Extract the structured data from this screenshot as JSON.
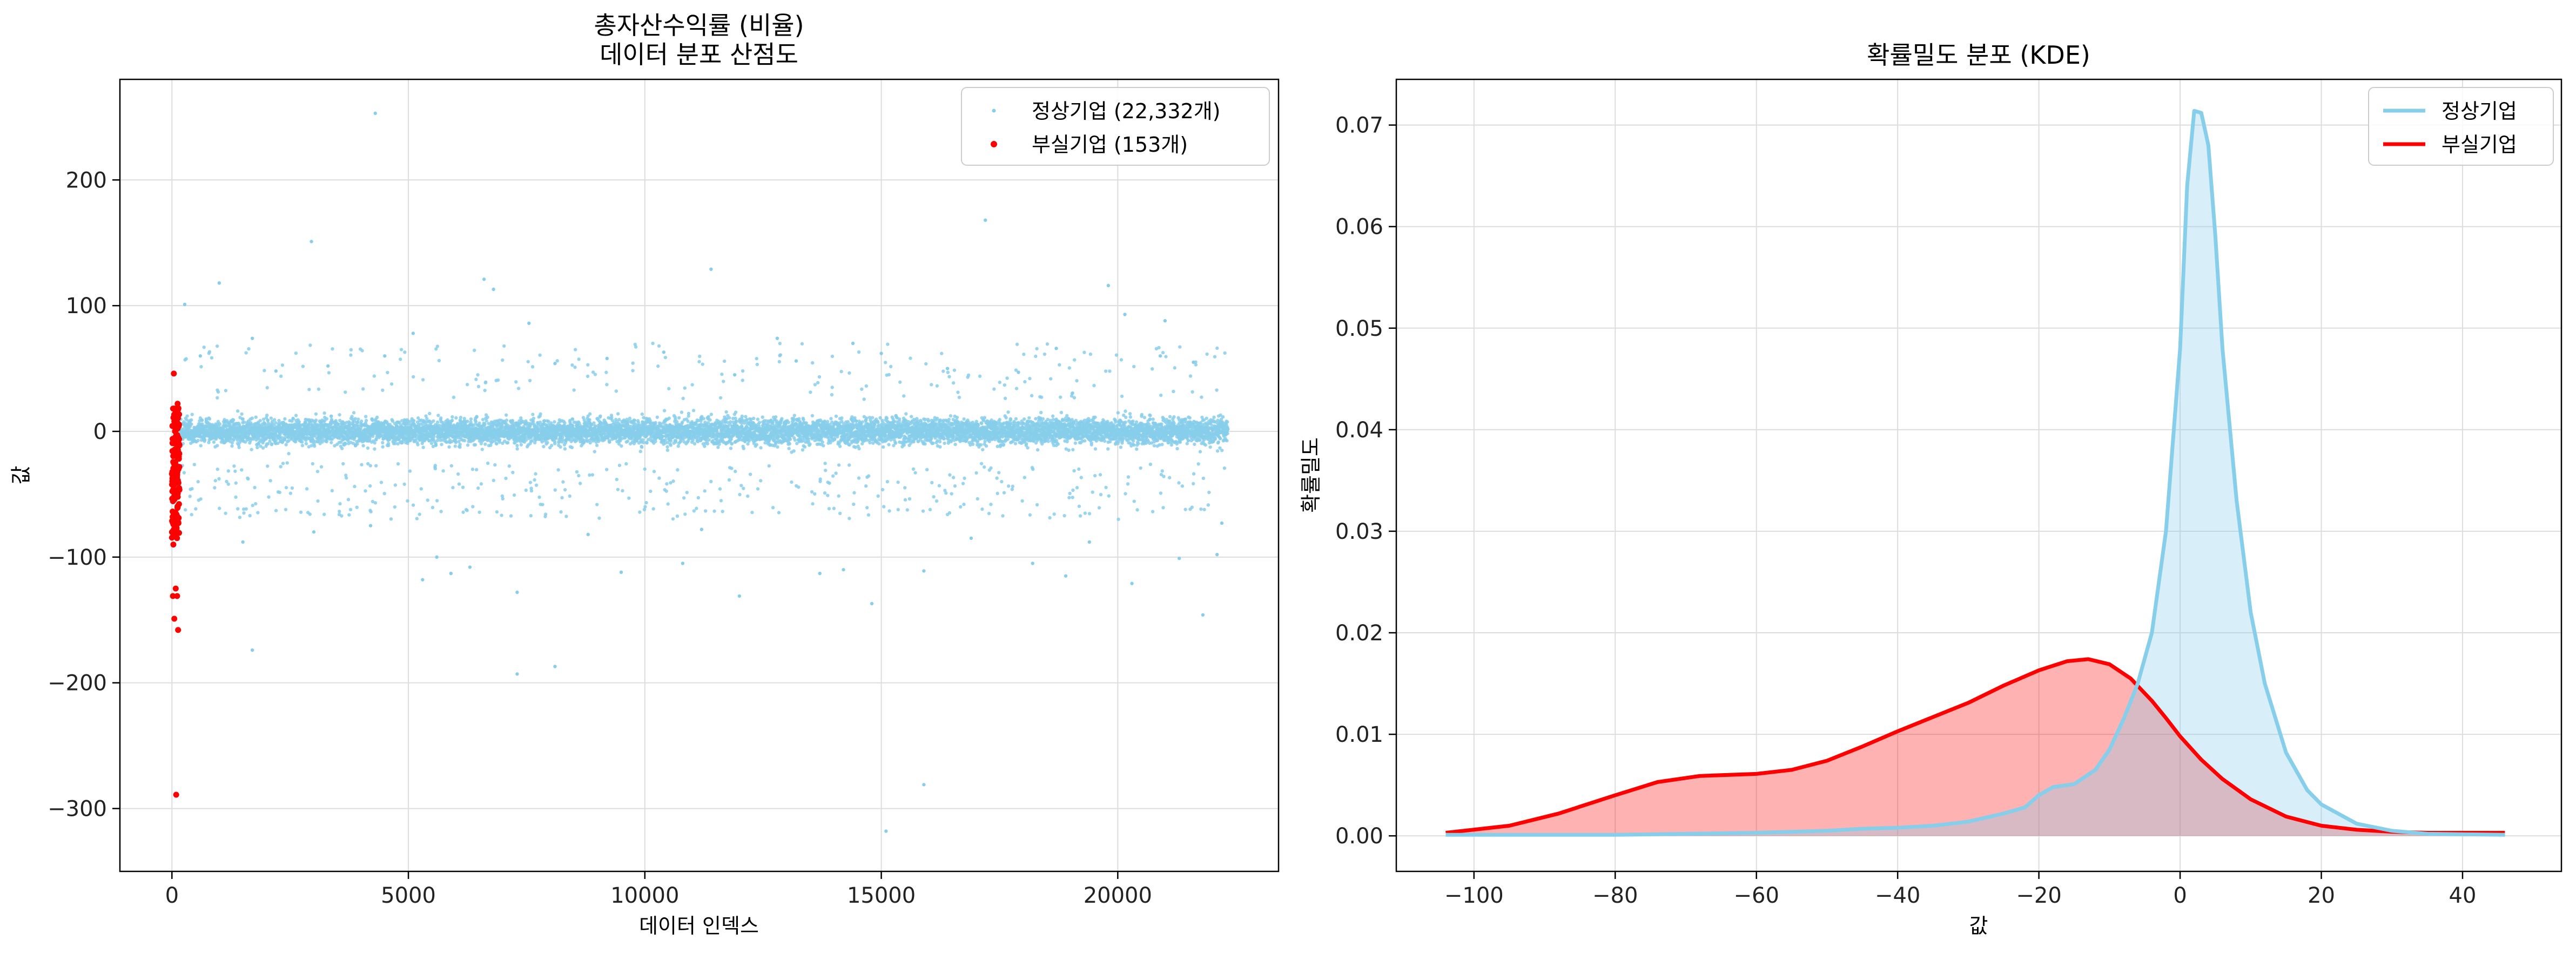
{
  "chart_data": [
    {
      "type": "scatter",
      "title": [
        "총자산수익률 (비율)",
        "데이터 분포 산점도"
      ],
      "xlabel": "데이터 인덱스",
      "ylabel": "값",
      "xlim": [
        -1100,
        23400
      ],
      "ylim": [
        -350,
        280
      ],
      "xticks": [
        0,
        5000,
        10000,
        15000,
        20000
      ],
      "yticks": [
        -300,
        -200,
        -100,
        0,
        100,
        200
      ],
      "grid": true,
      "legend_position": "top-right",
      "colors": {
        "normal": "#87ceeb",
        "bankrupt": "#ff0000"
      },
      "series": [
        {
          "name": "정상기업 (22,332개)",
          "count": 22332,
          "x_range": [
            150,
            22330
          ],
          "typical_y_range": [
            -25,
            25
          ],
          "outliers": [
            {
              "x": 4300,
              "y": 253
            },
            {
              "x": 17200,
              "y": 168
            },
            {
              "x": 2950,
              "y": 151
            },
            {
              "x": 11400,
              "y": 129
            },
            {
              "x": 6600,
              "y": 121
            },
            {
              "x": 19800,
              "y": 116
            },
            {
              "x": 1000,
              "y": 118
            },
            {
              "x": 6800,
              "y": 113
            },
            {
              "x": 270,
              "y": 101
            },
            {
              "x": 20150,
              "y": 93
            },
            {
              "x": 7550,
              "y": 86
            },
            {
              "x": 21000,
              "y": 88
            },
            {
              "x": 5100,
              "y": 78
            },
            {
              "x": 1700,
              "y": 74
            },
            {
              "x": 12800,
              "y": 74
            },
            {
              "x": 18700,
              "y": 66
            },
            {
              "x": 15000,
              "y": 62
            },
            {
              "x": 4500,
              "y": 60
            },
            {
              "x": 9200,
              "y": 58
            },
            {
              "x": 10400,
              "y": 63
            },
            {
              "x": 14400,
              "y": 70
            },
            {
              "x": 600,
              "y": 60
            },
            {
              "x": 3300,
              "y": 52
            },
            {
              "x": 8100,
              "y": 54
            },
            {
              "x": 13200,
              "y": 56
            },
            {
              "x": 16400,
              "y": 50
            },
            {
              "x": 21600,
              "y": 55
            },
            {
              "x": 2200,
              "y": 48
            },
            {
              "x": 11900,
              "y": 45
            },
            {
              "x": 17900,
              "y": 47
            },
            {
              "x": 20900,
              "y": 60
            },
            {
              "x": 1500,
              "y": -88
            },
            {
              "x": 5600,
              "y": -100
            },
            {
              "x": 5900,
              "y": -113
            },
            {
              "x": 5300,
              "y": -118
            },
            {
              "x": 6300,
              "y": -108
            },
            {
              "x": 7300,
              "y": -128
            },
            {
              "x": 9500,
              "y": -112
            },
            {
              "x": 10800,
              "y": -105
            },
            {
              "x": 12000,
              "y": -131
            },
            {
              "x": 13700,
              "y": -113
            },
            {
              "x": 14200,
              "y": -110
            },
            {
              "x": 14800,
              "y": -137
            },
            {
              "x": 15900,
              "y": -111
            },
            {
              "x": 18200,
              "y": -105
            },
            {
              "x": 18900,
              "y": -115
            },
            {
              "x": 20300,
              "y": -121
            },
            {
              "x": 21300,
              "y": -101
            },
            {
              "x": 22100,
              "y": -98
            },
            {
              "x": 21800,
              "y": -146
            },
            {
              "x": 1700,
              "y": -174
            },
            {
              "x": 7300,
              "y": -193
            },
            {
              "x": 8100,
              "y": -187
            },
            {
              "x": 15900,
              "y": -281
            },
            {
              "x": 15100,
              "y": -318
            },
            {
              "x": 3000,
              "y": -80
            },
            {
              "x": 4200,
              "y": -75
            },
            {
              "x": 8800,
              "y": -82
            },
            {
              "x": 11200,
              "y": -78
            },
            {
              "x": 16900,
              "y": -85
            },
            {
              "x": 19400,
              "y": -88
            },
            {
              "x": 22200,
              "y": -73
            }
          ]
        },
        {
          "name": "부실기업 (153개)",
          "count": 153,
          "x_range": [
            0,
            160
          ],
          "points": [
            {
              "x": 40,
              "y": 46
            },
            {
              "x": 120,
              "y": 22
            },
            {
              "x": 60,
              "y": 18
            },
            {
              "x": 30,
              "y": -90
            },
            {
              "x": 80,
              "y": -125
            },
            {
              "x": 20,
              "y": -131
            },
            {
              "x": 110,
              "y": -131
            },
            {
              "x": 50,
              "y": -149
            },
            {
              "x": 130,
              "y": -158
            },
            {
              "x": 90,
              "y": -289
            }
          ],
          "typical_y_range": [
            -85,
            20
          ]
        }
      ]
    },
    {
      "type": "area",
      "title": "확률밀도 분포 (KDE)",
      "xlabel": "값",
      "ylabel": "확률밀도",
      "xlim": [
        -111,
        54
      ],
      "ylim": [
        -0.0035,
        0.0745
      ],
      "xticks": [
        -100,
        -80,
        -60,
        -40,
        -20,
        0,
        20,
        40
      ],
      "yticks": [
        0.0,
        0.01,
        0.02,
        0.03,
        0.04,
        0.05,
        0.06,
        0.07
      ],
      "ytick_labels": [
        "0.00",
        "0.01",
        "0.02",
        "0.03",
        "0.04",
        "0.05",
        "0.06",
        "0.07"
      ],
      "grid": true,
      "legend_position": "top-right",
      "series": [
        {
          "name": "정상기업",
          "color": "#87ceeb",
          "x": [
            -104,
            -90,
            -80,
            -70,
            -60,
            -50,
            -45,
            -40,
            -35,
            -30,
            -25,
            -22,
            -20,
            -18,
            -15,
            -12,
            -10,
            -8,
            -6,
            -4,
            -2,
            0,
            1,
            2,
            3,
            4,
            5,
            6,
            8,
            10,
            12,
            15,
            18,
            20,
            25,
            30,
            35,
            46
          ],
          "y": [
            0.0001,
            0.0001,
            0.0001,
            0.0002,
            0.0003,
            0.0005,
            0.0007,
            0.0008,
            0.001,
            0.0014,
            0.0022,
            0.0028,
            0.004,
            0.0048,
            0.0051,
            0.0065,
            0.0085,
            0.0115,
            0.015,
            0.02,
            0.03,
            0.048,
            0.064,
            0.0714,
            0.0712,
            0.068,
            0.059,
            0.048,
            0.033,
            0.022,
            0.015,
            0.0082,
            0.0045,
            0.0031,
            0.0012,
            0.0005,
            0.0002,
            0.0001
          ]
        },
        {
          "name": "부실기업",
          "color": "#ff0000",
          "x": [
            -104,
            -95,
            -88,
            -80,
            -74,
            -68,
            -60,
            -55,
            -50,
            -45,
            -40,
            -35,
            -30,
            -25,
            -20,
            -16,
            -13,
            -10,
            -7,
            -4,
            -2,
            0,
            3,
            6,
            10,
            15,
            20,
            25,
            30,
            35,
            40,
            46
          ],
          "y": [
            0.0003,
            0.001,
            0.0022,
            0.004,
            0.0053,
            0.0059,
            0.0061,
            0.0065,
            0.0074,
            0.0088,
            0.0103,
            0.0117,
            0.0131,
            0.0148,
            0.0163,
            0.0172,
            0.0174,
            0.0169,
            0.0155,
            0.0133,
            0.0116,
            0.0098,
            0.0075,
            0.0056,
            0.0036,
            0.0019,
            0.001,
            0.0006,
            0.0004,
            0.0003,
            0.0003,
            0.0003
          ]
        }
      ]
    }
  ]
}
